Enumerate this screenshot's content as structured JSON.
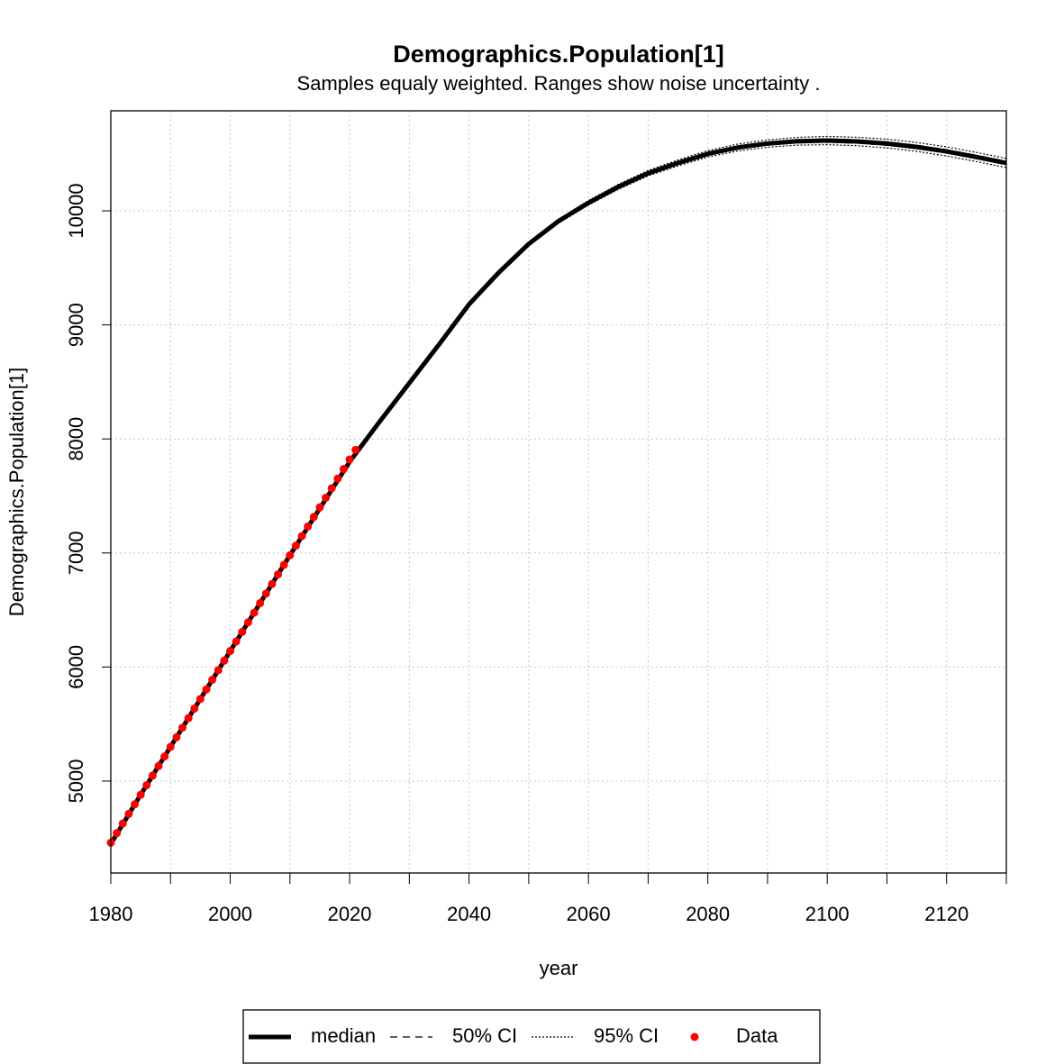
{
  "chart_data": {
    "type": "line",
    "title": "Demographics.Population[1]",
    "subtitle": "Samples equaly weighted. Ranges show  noise uncertainty .",
    "xlabel": "year",
    "ylabel": "Demographics.Population[1]",
    "xlim": [
      1980,
      2130
    ],
    "ylim": [
      4194,
      10877
    ],
    "xticks": [
      1980,
      2000,
      2020,
      2040,
      2060,
      2080,
      2100,
      2120
    ],
    "x_minor_ticks": [
      1990,
      2010,
      2030,
      2050,
      2070,
      2090,
      2110,
      2130
    ],
    "yticks": [
      5000,
      6000,
      7000,
      8000,
      9000,
      10000
    ],
    "grid": true,
    "legend": "bottom",
    "x": [
      1980,
      1985,
      1990,
      1995,
      2000,
      2005,
      2010,
      2015,
      2020,
      2025,
      2030,
      2035,
      2040,
      2045,
      2050,
      2055,
      2060,
      2065,
      2070,
      2075,
      2080,
      2085,
      2090,
      2095,
      2100,
      2105,
      2110,
      2115,
      2120,
      2125,
      2130
    ],
    "series": [
      {
        "name": "median",
        "color": "#000000",
        "style": "solid",
        "values": [
          4450,
          4880,
          5300,
          5720,
          6140,
          6560,
          6980,
          7390,
          7800,
          8150,
          8490,
          8830,
          9180,
          9460,
          9710,
          9910,
          10070,
          10210,
          10330,
          10420,
          10500,
          10555,
          10590,
          10610,
          10616,
          10608,
          10590,
          10560,
          10521,
          10472,
          10419
        ]
      },
      {
        "name": "50% CI",
        "color": "#000000",
        "style": "dashed",
        "lower": [
          4449,
          4879,
          5299,
          5719,
          6139,
          6559,
          6979,
          7389,
          7799,
          8148,
          8487,
          8826,
          9175,
          9454,
          9703,
          9902,
          10061,
          10200,
          10319,
          10408,
          10488,
          10542,
          10577,
          10596,
          10602,
          10593,
          10575,
          10545,
          10506,
          10457,
          10404
        ],
        "upper": [
          4451,
          4881,
          5301,
          5721,
          6141,
          6561,
          6981,
          7391,
          7801,
          8152,
          8493,
          8834,
          9185,
          9466,
          9717,
          9918,
          10079,
          10220,
          10341,
          10432,
          10512,
          10568,
          10603,
          10624,
          10630,
          10623,
          10605,
          10575,
          10536,
          10487,
          10434
        ]
      },
      {
        "name": "95% CI",
        "color": "#000000",
        "style": "dotted",
        "lower": [
          4446,
          4876,
          5296,
          5716,
          6136,
          6556,
          6976,
          7386,
          7796,
          8144,
          8482,
          8820,
          9168,
          9446,
          9694,
          9892,
          10050,
          10188,
          10306,
          10394,
          10472,
          10525,
          10558,
          10576,
          10580,
          10571,
          10552,
          10521,
          10481,
          10432,
          10379
        ],
        "upper": [
          4454,
          4884,
          5304,
          5724,
          6144,
          6564,
          6984,
          7394,
          7804,
          8156,
          8498,
          8840,
          9192,
          9474,
          9726,
          9928,
          10090,
          10232,
          10354,
          10446,
          10528,
          10585,
          10622,
          10644,
          10652,
          10645,
          10628,
          10599,
          10561,
          10512,
          10459
        ]
      }
    ],
    "points": {
      "name": "Data",
      "color": "#ff0000",
      "x": [
        1980,
        1981,
        1982,
        1983,
        1984,
        1985,
        1986,
        1987,
        1988,
        1989,
        1990,
        1991,
        1992,
        1993,
        1994,
        1995,
        1996,
        1997,
        1998,
        1999,
        2000,
        2001,
        2002,
        2003,
        2004,
        2005,
        2006,
        2007,
        2008,
        2009,
        2010,
        2011,
        2012,
        2013,
        2014,
        2015,
        2016,
        2017,
        2018,
        2019,
        2020,
        2021
      ],
      "values": [
        4460,
        4544,
        4628,
        4712,
        4796,
        4880,
        4964,
        5048,
        5132,
        5216,
        5300,
        5384,
        5468,
        5552,
        5636,
        5720,
        5804,
        5888,
        5972,
        6056,
        6140,
        6224,
        6308,
        6392,
        6476,
        6560,
        6644,
        6728,
        6812,
        6896,
        6980,
        7064,
        7148,
        7232,
        7316,
        7400,
        7484,
        7568,
        7652,
        7736,
        7820,
        7904
      ]
    }
  }
}
